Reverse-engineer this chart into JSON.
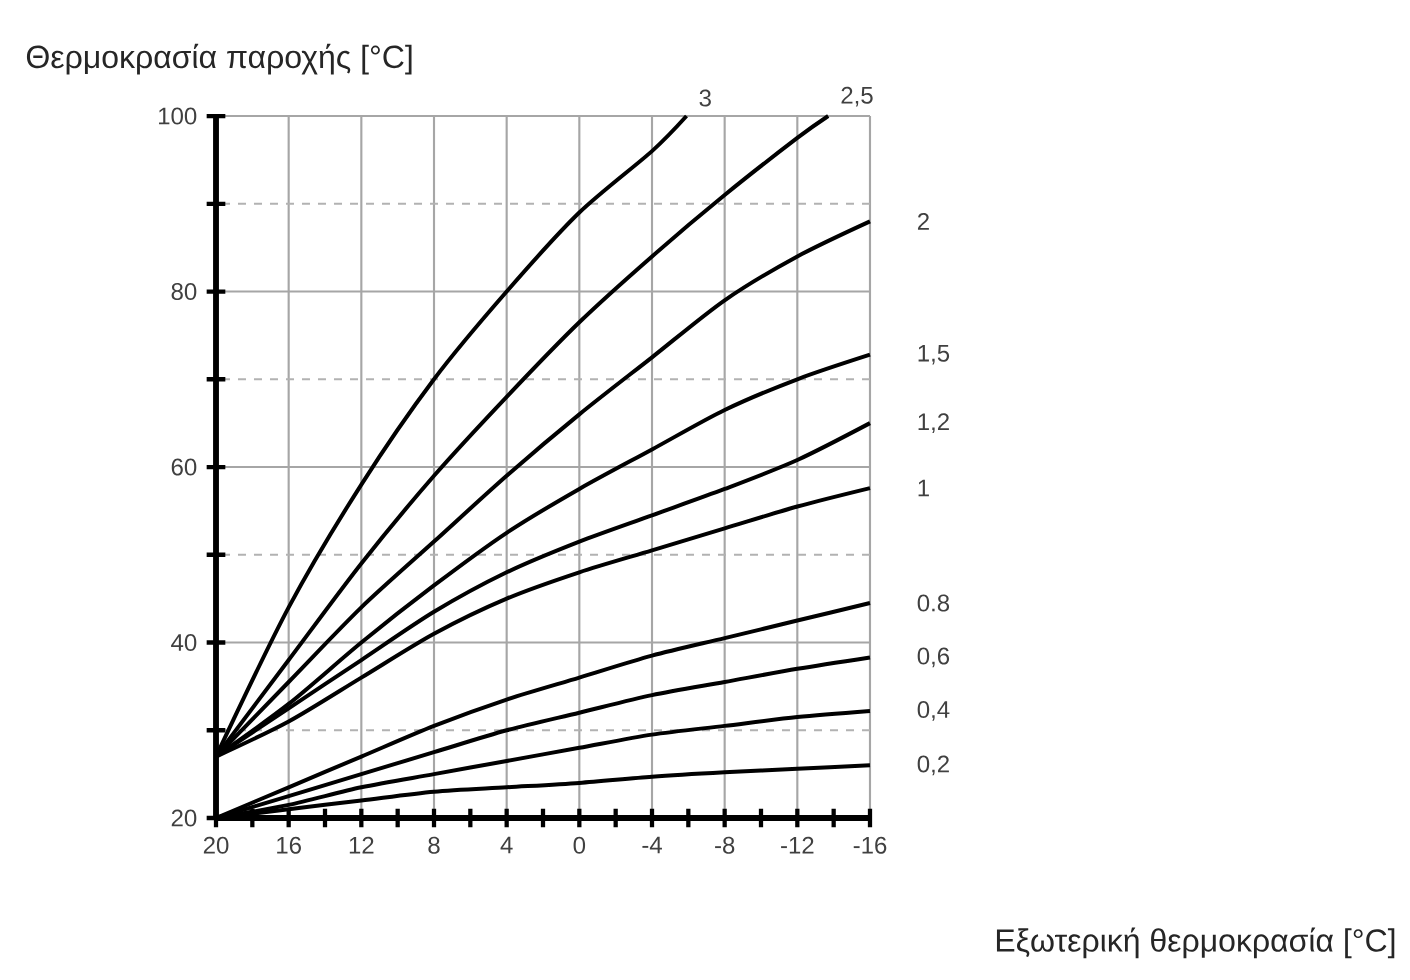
{
  "chart_data": {
    "type": "line",
    "xlabel": "Εξωτερική θερμοκρασία [°C]",
    "ylabel": "Θερμοκρασία παροχής [°C]",
    "xlim": [
      20,
      -16
    ],
    "ylim": [
      20,
      100
    ],
    "xticks": [
      20,
      {
        "value": 18,
        "label": null
      },
      16,
      {
        "value": 14,
        "label": null
      },
      12,
      {
        "value": 10,
        "label": null
      },
      8,
      {
        "value": 6,
        "label": null
      },
      4,
      {
        "value": 2,
        "label": null
      },
      0,
      {
        "value": -2,
        "label": null
      },
      -4,
      {
        "value": -6,
        "label": null
      },
      -8,
      {
        "value": -10,
        "label": null
      },
      -12,
      {
        "value": -14,
        "label": null
      },
      -16
    ],
    "yticks": [
      20,
      {
        "value": 30,
        "label": null
      },
      40,
      {
        "value": 50,
        "label": null
      },
      60,
      {
        "value": 70,
        "label": null
      },
      80,
      {
        "value": 90,
        "label": null
      },
      100
    ],
    "grid": true,
    "marker": "none",
    "line_style": "solid",
    "x": [
      20,
      16,
      12,
      8,
      4,
      0,
      -4,
      -8,
      -12,
      -16
    ],
    "series": [
      {
        "name": "3",
        "color": "#000000",
        "x": [
          20,
          16,
          12,
          8,
          4,
          0,
          -4,
          -5.9
        ],
        "values": [
          27,
          44,
          58,
          70,
          80,
          89,
          96,
          100
        ]
      },
      {
        "name": "2,5",
        "color": "#000000",
        "x": [
          20,
          16,
          12,
          8,
          4,
          0,
          -4,
          -8,
          -12,
          -13.7
        ],
        "values": [
          27,
          38,
          49,
          59,
          68,
          76.5,
          84,
          91,
          97.5,
          100
        ]
      },
      {
        "name": "2",
        "color": "#000000",
        "values": [
          27,
          35.5,
          44,
          51.5,
          59,
          66,
          72.5,
          79,
          84,
          88
        ]
      },
      {
        "name": "1,5",
        "color": "#000000",
        "values": [
          27,
          33,
          40,
          46.5,
          52.5,
          57.5,
          62,
          66.5,
          70,
          72.8
        ]
      },
      {
        "name": "1,2",
        "color": "#000000",
        "values": [
          27,
          32.5,
          38,
          43.5,
          48,
          51.5,
          54.5,
          57.5,
          60.8,
          65
        ]
      },
      {
        "name": "1",
        "color": "#000000",
        "values": [
          27,
          31,
          36,
          41,
          45,
          48,
          50.5,
          53,
          55.5,
          57.6
        ]
      },
      {
        "name": "0.8",
        "color": "#000000",
        "values": [
          20,
          23.5,
          27,
          30.5,
          33.5,
          36,
          38.5,
          40.5,
          42.5,
          44.5
        ]
      },
      {
        "name": "0,6",
        "color": "#000000",
        "values": [
          20,
          22.5,
          25,
          27.5,
          30,
          32,
          34,
          35.5,
          37,
          38.3
        ]
      },
      {
        "name": "0,4",
        "color": "#000000",
        "values": [
          20,
          21.5,
          23.5,
          25,
          26.5,
          28,
          29.5,
          30.5,
          31.5,
          32.2
        ]
      },
      {
        "name": "0,2",
        "color": "#000000",
        "values": [
          20,
          21,
          22,
          23,
          23.5,
          24,
          24.7,
          25.2,
          25.6,
          26
        ]
      }
    ]
  }
}
